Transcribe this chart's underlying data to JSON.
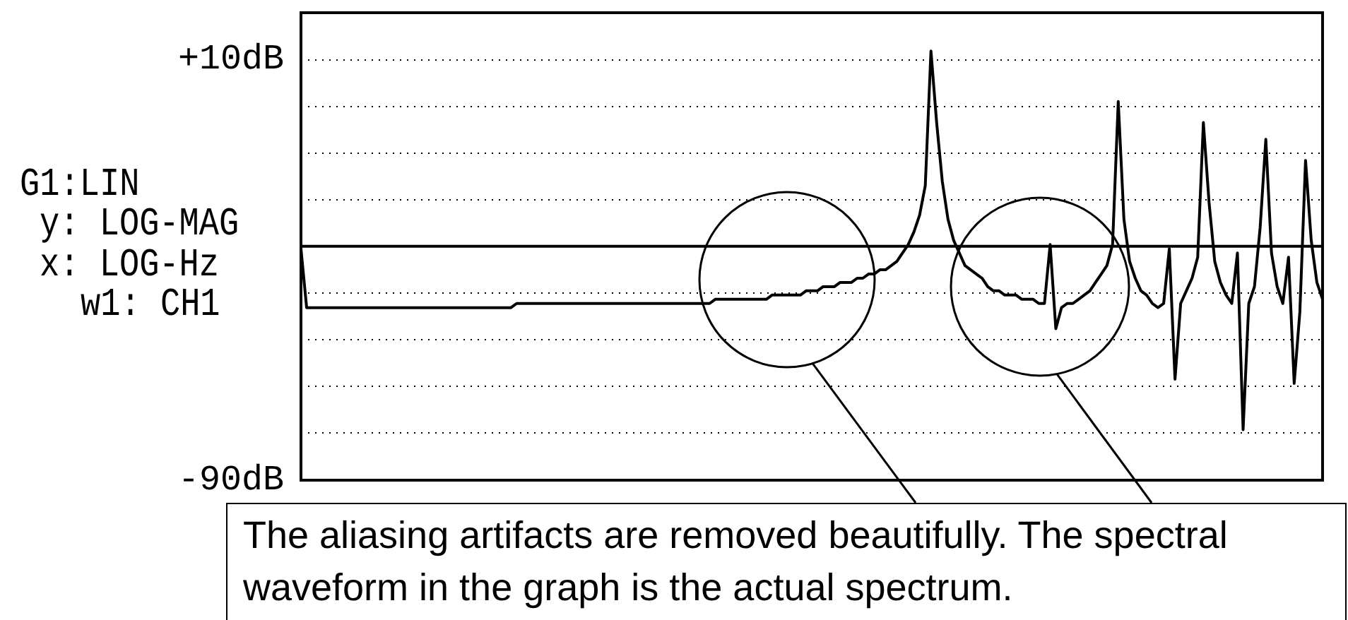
{
  "chart_data": {
    "type": "line",
    "annotations": [
      "G1:LIN",
      "y: LOG-MAG",
      "x: LOG-Hz",
      "w1: CH1",
      "The aliasing artifacts are removed beautifully. The spectral waveform in the graph is the actual spectrum."
    ],
    "categories": [
      null,
      null,
      null,
      null,
      null,
      null,
      null,
      null,
      null,
      null,
      null,
      null,
      null,
      null,
      null,
      null,
      null,
      null,
      null,
      null,
      null,
      null,
      null,
      null,
      null,
      null,
      null,
      null,
      null,
      null,
      null,
      null,
      null,
      null,
      null,
      null,
      null,
      null,
      null,
      null,
      null,
      null,
      null,
      null,
      null,
      null,
      null,
      null,
      null,
      null,
      null,
      null,
      null,
      null,
      null,
      null,
      null,
      null,
      null,
      null,
      null,
      null,
      null,
      null,
      null,
      null,
      null,
      null,
      null,
      null,
      null,
      null,
      null,
      null,
      null,
      null,
      null,
      null,
      null,
      null,
      null,
      null,
      null,
      null,
      null,
      null,
      null,
      null,
      null,
      null,
      null,
      null,
      null,
      null,
      null,
      null,
      null,
      null,
      null,
      null,
      null,
      null,
      null,
      null,
      null,
      null,
      null,
      null,
      null,
      null,
      null,
      null,
      null,
      null,
      null,
      null,
      null,
      null,
      null,
      null,
      null,
      null,
      null,
      null,
      null,
      null,
      null,
      null,
      null,
      null,
      null,
      null,
      null,
      null,
      null,
      null,
      null,
      null,
      null,
      null,
      null,
      null,
      null,
      null,
      null,
      null,
      null,
      null,
      null,
      null,
      null,
      null,
      null,
      null,
      null,
      null,
      null,
      null,
      null,
      null,
      null,
      null,
      null,
      null,
      null,
      null,
      null,
      null,
      null,
      null,
      null,
      null,
      null,
      null,
      null,
      null,
      null,
      null,
      null,
      null,
      null
    ],
    "color": "#000000",
    "values": [
      -35,
      -49,
      -49,
      -49,
      -49,
      -49,
      -49,
      -49,
      -49,
      -49,
      -49,
      -49,
      -49,
      -49,
      -49,
      -49,
      -49,
      -49,
      -49,
      -49,
      -49,
      -49,
      -49,
      -49,
      -49,
      -49,
      -49,
      -49,
      -49,
      -49,
      -49,
      -49,
      -49,
      -49,
      -49,
      -49,
      -49,
      -49,
      -48,
      -48,
      -48,
      -48,
      -48,
      -48,
      -48,
      -48,
      -48,
      -48,
      -48,
      -48,
      -48,
      -48,
      -48,
      -48,
      -48,
      -48,
      -48,
      -48,
      -48,
      -48,
      -48,
      -48,
      -48,
      -48,
      -48,
      -48,
      -48,
      -48,
      -48,
      -48,
      -48,
      -48,
      -48,
      -47,
      -47,
      -47,
      -47,
      -47,
      -47,
      -47,
      -47,
      -47,
      -47,
      -46,
      -46,
      -46,
      -46,
      -46,
      -46,
      -45,
      -45,
      -45,
      -44,
      -44,
      -44,
      -43,
      -43,
      -43,
      -42,
      -42,
      -41,
      -41,
      -40,
      -40,
      -39,
      -38,
      -36,
      -34,
      -31,
      -27,
      -20,
      12,
      -5,
      -19,
      -28,
      -33,
      -36,
      -39,
      -40,
      -41,
      -42,
      -44,
      -45,
      -45,
      -46,
      -46,
      -46,
      -47,
      -47,
      -47,
      -48,
      -48,
      -34,
      -54,
      -49,
      -48,
      -48,
      -47,
      -46,
      -45,
      -43,
      -41,
      -39,
      -34,
      0,
      -28,
      -38,
      -42,
      -45,
      -46,
      -48,
      -49,
      -48,
      -35,
      -66,
      -48,
      -45,
      -42,
      -37,
      -5,
      -24,
      -38,
      -43,
      -46,
      -48,
      -36,
      -78,
      -48,
      -44,
      -30,
      -9,
      -36,
      -44,
      -48,
      -37,
      -67,
      -50,
      -14,
      -33,
      -43,
      -47
    ],
    "ylim": [
      -90,
      21.1
    ],
    "yticks": [
      {
        "value": 10,
        "label": "+10dB"
      },
      {
        "value": -1.1,
        "label": null
      },
      {
        "value": -12.2,
        "label": null
      },
      {
        "value": -23.3,
        "label": null
      },
      {
        "value": -34.4,
        "label": null
      },
      {
        "value": -45.6,
        "label": null
      },
      {
        "value": -56.7,
        "label": null
      },
      {
        "value": -67.8,
        "label": null
      },
      {
        "value": -78.9,
        "label": null
      },
      {
        "value": -90,
        "label": "-90dB"
      }
    ],
    "ref_lines": [
      {
        "axis": "y",
        "value": -34.4,
        "color": "#000000"
      }
    ],
    "grid": "y",
    "legend": false,
    "tick_labels": "y",
    "marker": "none"
  }
}
